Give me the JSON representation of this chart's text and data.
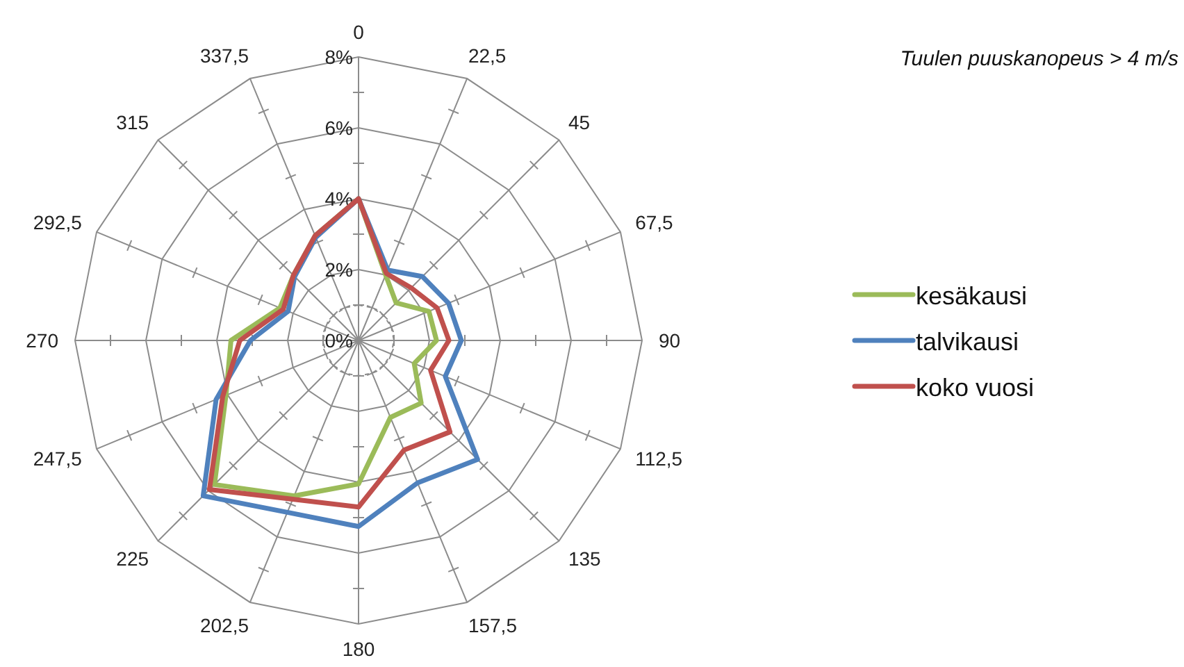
{
  "chart_data": {
    "type": "radar",
    "title": "Tuulen puuskanopeus > 4 m/s",
    "categories": [
      "0",
      "22,5",
      "45",
      "67,5",
      "90",
      "112,5",
      "135",
      "157,5",
      "180",
      "202,5",
      "225",
      "247,5",
      "270",
      "292,5",
      "315",
      "337,5"
    ],
    "ylim": [
      0,
      8
    ],
    "yticks": [
      {
        "value": 0,
        "label": "0%"
      },
      {
        "value": 2,
        "label": "2%"
      },
      {
        "value": 4,
        "label": "4%"
      },
      {
        "value": 6,
        "label": "6%"
      },
      {
        "value": 8,
        "label": "8%"
      }
    ],
    "legend": "right",
    "grid": true,
    "series": [
      {
        "name": "kesäkausi",
        "color": "#9bbb59",
        "values": [
          4.0,
          2.0,
          1.5,
          2.15,
          2.2,
          1.7,
          2.5,
          2.35,
          4.05,
          4.75,
          5.75,
          4.05,
          3.6,
          2.4,
          2.6,
          3.2
        ]
      },
      {
        "name": "talvikausi",
        "color": "#4f81bd",
        "values": [
          4.0,
          2.15,
          2.55,
          2.75,
          2.9,
          2.65,
          4.75,
          4.35,
          5.25,
          5.25,
          6.2,
          4.35,
          3.05,
          2.15,
          2.55,
          3.15
        ]
      },
      {
        "name": "koko vuosi",
        "color": "#c0504d",
        "values": [
          4.0,
          2.05,
          2.1,
          2.4,
          2.55,
          2.2,
          3.65,
          3.35,
          4.7,
          4.85,
          5.95,
          4.15,
          3.35,
          2.3,
          2.6,
          3.2
        ]
      }
    ]
  }
}
